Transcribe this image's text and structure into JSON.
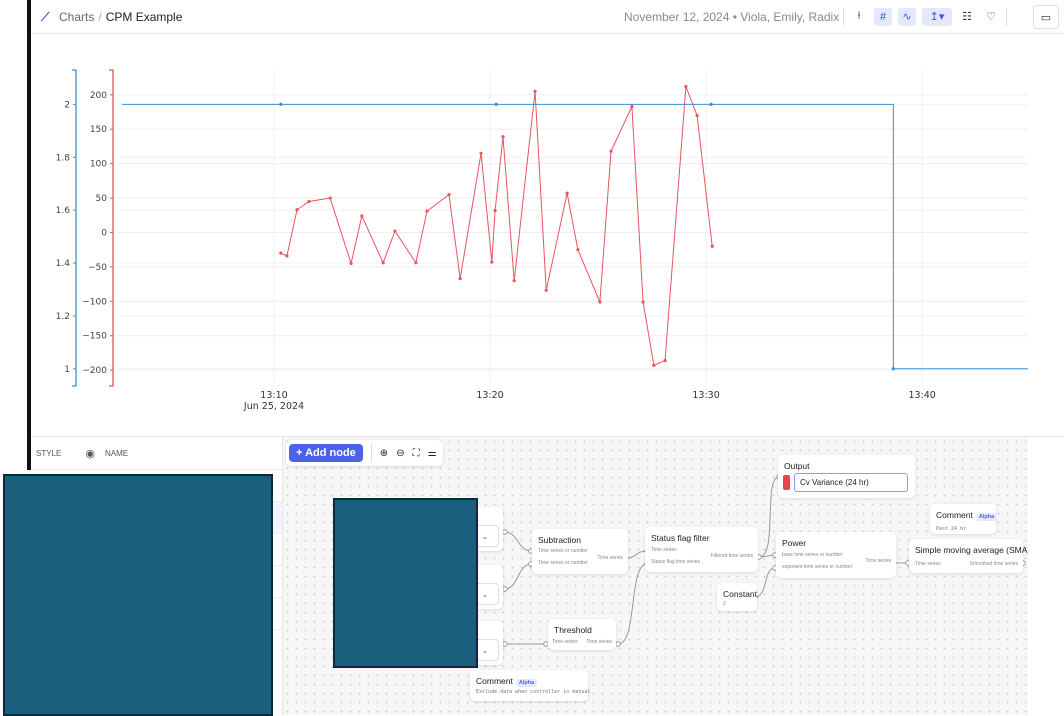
{
  "header": {
    "breadcrumb": [
      "Charts",
      "CPM Example"
    ],
    "separator": "/",
    "meta": "November 12, 2024 • Viola, Emily, Radix",
    "tools": [
      {
        "icon": "cursor-icon",
        "glyph": "⍿",
        "active": false
      },
      {
        "icon": "grid-icon",
        "glyph": "#",
        "active": true
      },
      {
        "icon": "line-smooth-icon",
        "glyph": "∿",
        "active": true
      },
      {
        "icon": "axis-icon",
        "glyph": "↥▾",
        "active": true
      },
      {
        "icon": "legend-icon",
        "glyph": "☷",
        "active": false
      },
      {
        "icon": "heart-check-icon",
        "glyph": "♡",
        "active": false
      }
    ],
    "calendar_icon": "▭"
  },
  "chart_data": {
    "type": "line",
    "x_ticks": [
      "13:10",
      "13:20",
      "13:30",
      "13:40"
    ],
    "x_tick_sub": "Jun 25, 2024",
    "xlim": [
      "13:02:44",
      "13:44:54"
    ],
    "axes": [
      {
        "name": "left-blue",
        "color": "#3a8fd6",
        "ylim": [
          0.935,
          2.13
        ],
        "ticks": [
          1,
          1.2,
          1.4,
          1.6,
          1.8,
          2
        ]
      },
      {
        "name": "left-red",
        "color": "#e8545f",
        "ylim": [
          -223,
          236
        ],
        "ticks": [
          -200,
          -150,
          -100,
          -50,
          0,
          50,
          100,
          150,
          200
        ]
      }
    ],
    "grid": true,
    "series": [
      {
        "axis": 1,
        "color": "#e8545f",
        "shape": "linear",
        "x": [
          "13:10:19",
          "13:10:36",
          "13:11:04",
          "13:11:37",
          "13:12:36",
          "13:13:34",
          "13:14:04",
          "13:15:03",
          "13:15:36",
          "13:16:34",
          "13:17:05",
          "13:18:06",
          "13:18:37",
          "13:19:35",
          "13:20:05",
          "13:20:14",
          "13:20:36",
          "13:21:07",
          "13:22:05",
          "13:22:36",
          "13:23:34",
          "13:24:04",
          "13:25:05",
          "13:25:36",
          "13:26:34",
          "13:27:05",
          "13:27:35",
          "13:28:06",
          "13:29:04",
          "13:29:35",
          "13:30:17"
        ],
        "y": [
          -30,
          -34,
          33,
          45,
          50,
          -45,
          24,
          -44,
          2,
          -44,
          31,
          55,
          -67,
          115,
          -43,
          32,
          139,
          -70,
          205,
          -84,
          57,
          -25,
          -101,
          118,
          183,
          -101,
          -193,
          -186,
          212,
          170,
          -20
        ]
      },
      {
        "axis": 0,
        "color": "#3a8fd6",
        "shape": "hv",
        "x": [
          "13:02:58",
          "13:10:19",
          "13:20:17",
          "13:30:14",
          "13:38:40",
          "13:44:54"
        ],
        "y": [
          2,
          2,
          2,
          2,
          1,
          1
        ]
      }
    ]
  },
  "table": {
    "headers": [
      "STYLE",
      "NAME"
    ],
    "eye_icon": "◉"
  },
  "canvas": {
    "add_node": "+ Add node",
    "tools": [
      {
        "icon": "zoom-in-icon",
        "glyph": "⊕"
      },
      {
        "icon": "zoom-out-icon",
        "glyph": "⊖"
      },
      {
        "icon": "fit-view-icon",
        "glyph": "⛶"
      },
      {
        "icon": "settings-sliders-icon",
        "glyph": "⚌"
      }
    ],
    "nodes": {
      "subtraction": {
        "title": "Subtraction",
        "in1": "Time series or number",
        "in2": "Time series or number",
        "out": "Time series"
      },
      "status": {
        "title": "Status flag filter",
        "in1": "Time series",
        "in2": "Status flag time series",
        "out": "Filtered time series"
      },
      "output": {
        "title": "Output",
        "value": "Cv Variance (24 hr)",
        "color": "#e8454f"
      },
      "power": {
        "title": "Power",
        "in1": "base time series or number",
        "in2": "exponent time series or number",
        "out": "Time series"
      },
      "constant": {
        "title": "Constant",
        "value": "2"
      },
      "threshold": {
        "title": "Threshold",
        "in1": "Time series",
        "out": "Time series"
      },
      "comment1": {
        "title": "Comment",
        "badge": "Alpha",
        "text": "Past 24 hr"
      },
      "comment2": {
        "title": "Comment",
        "badge": "Alpha",
        "text": "Exclude data when controller in manual"
      },
      "sma": {
        "title": "Simple moving average (SMA)",
        "in1": "Time series",
        "out": "Smoothed time series"
      }
    },
    "chevron": "⌄"
  }
}
